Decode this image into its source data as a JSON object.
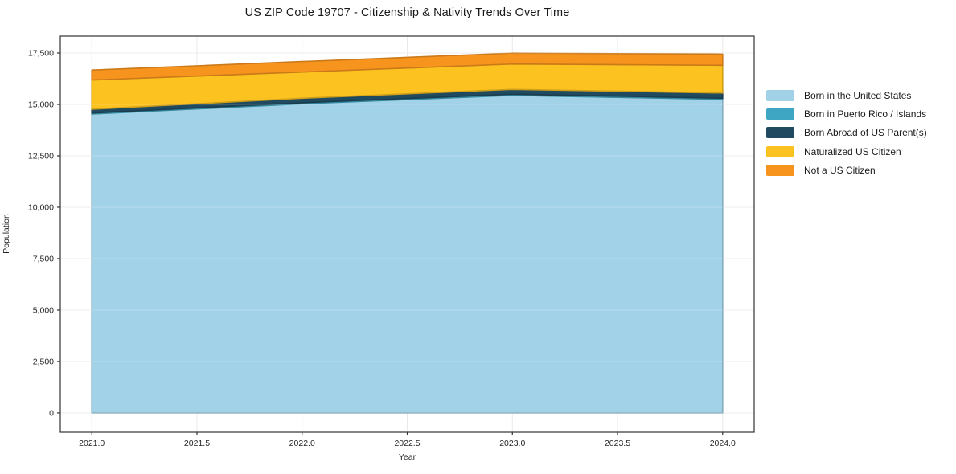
{
  "chart_data": {
    "type": "area",
    "stacked": true,
    "title": "US ZIP Code 19707 - Citizenship & Nativity Trends Over Time",
    "xlabel": "Year",
    "ylabel": "Population",
    "x": [
      2021,
      2022,
      2023,
      2024
    ],
    "series": [
      {
        "name": "Born in the United States",
        "color": "#a2d2e7",
        "values": [
          14530,
          15030,
          15440,
          15250
        ]
      },
      {
        "name": "Born in Puerto Rico / Islands",
        "color": "#3ea6c2",
        "values": [
          50,
          50,
          55,
          55
        ]
      },
      {
        "name": "Born Abroad of US Parent(s)",
        "color": "#1f4a5f",
        "values": [
          185,
          220,
          235,
          250
        ]
      },
      {
        "name": "Naturalized US Citizen",
        "color": "#fcc220",
        "values": [
          1420,
          1275,
          1235,
          1345
        ]
      },
      {
        "name": "Not a US Citizen",
        "color": "#f7941e",
        "values": [
          485,
          510,
          525,
          545
        ]
      }
    ],
    "stack_totals": [
      16670,
      17085,
      17490,
      17445
    ],
    "xticks": {
      "values": [
        2021.0,
        2021.5,
        2022.0,
        2022.5,
        2023.0,
        2023.5,
        2024.0
      ],
      "labels": [
        "2021.0",
        "2021.5",
        "2022.0",
        "2022.5",
        "2023.0",
        "2023.5",
        "2024.0"
      ]
    },
    "yticks": {
      "values": [
        0,
        2500,
        5000,
        7500,
        10000,
        12500,
        15000,
        17500
      ],
      "labels": [
        "0",
        "2,500",
        "5,000",
        "7,500",
        "10,000",
        "12,500",
        "15,000",
        "17,500"
      ]
    },
    "xlim": [
      2020.85,
      2024.15
    ],
    "ylim": [
      -940,
      18320
    ],
    "grid": true,
    "legend_position": "right",
    "colors": {
      "grid": "#e9e9e9",
      "spine": "#333333",
      "tick_label": "#262626",
      "background": "#ffffff"
    }
  }
}
